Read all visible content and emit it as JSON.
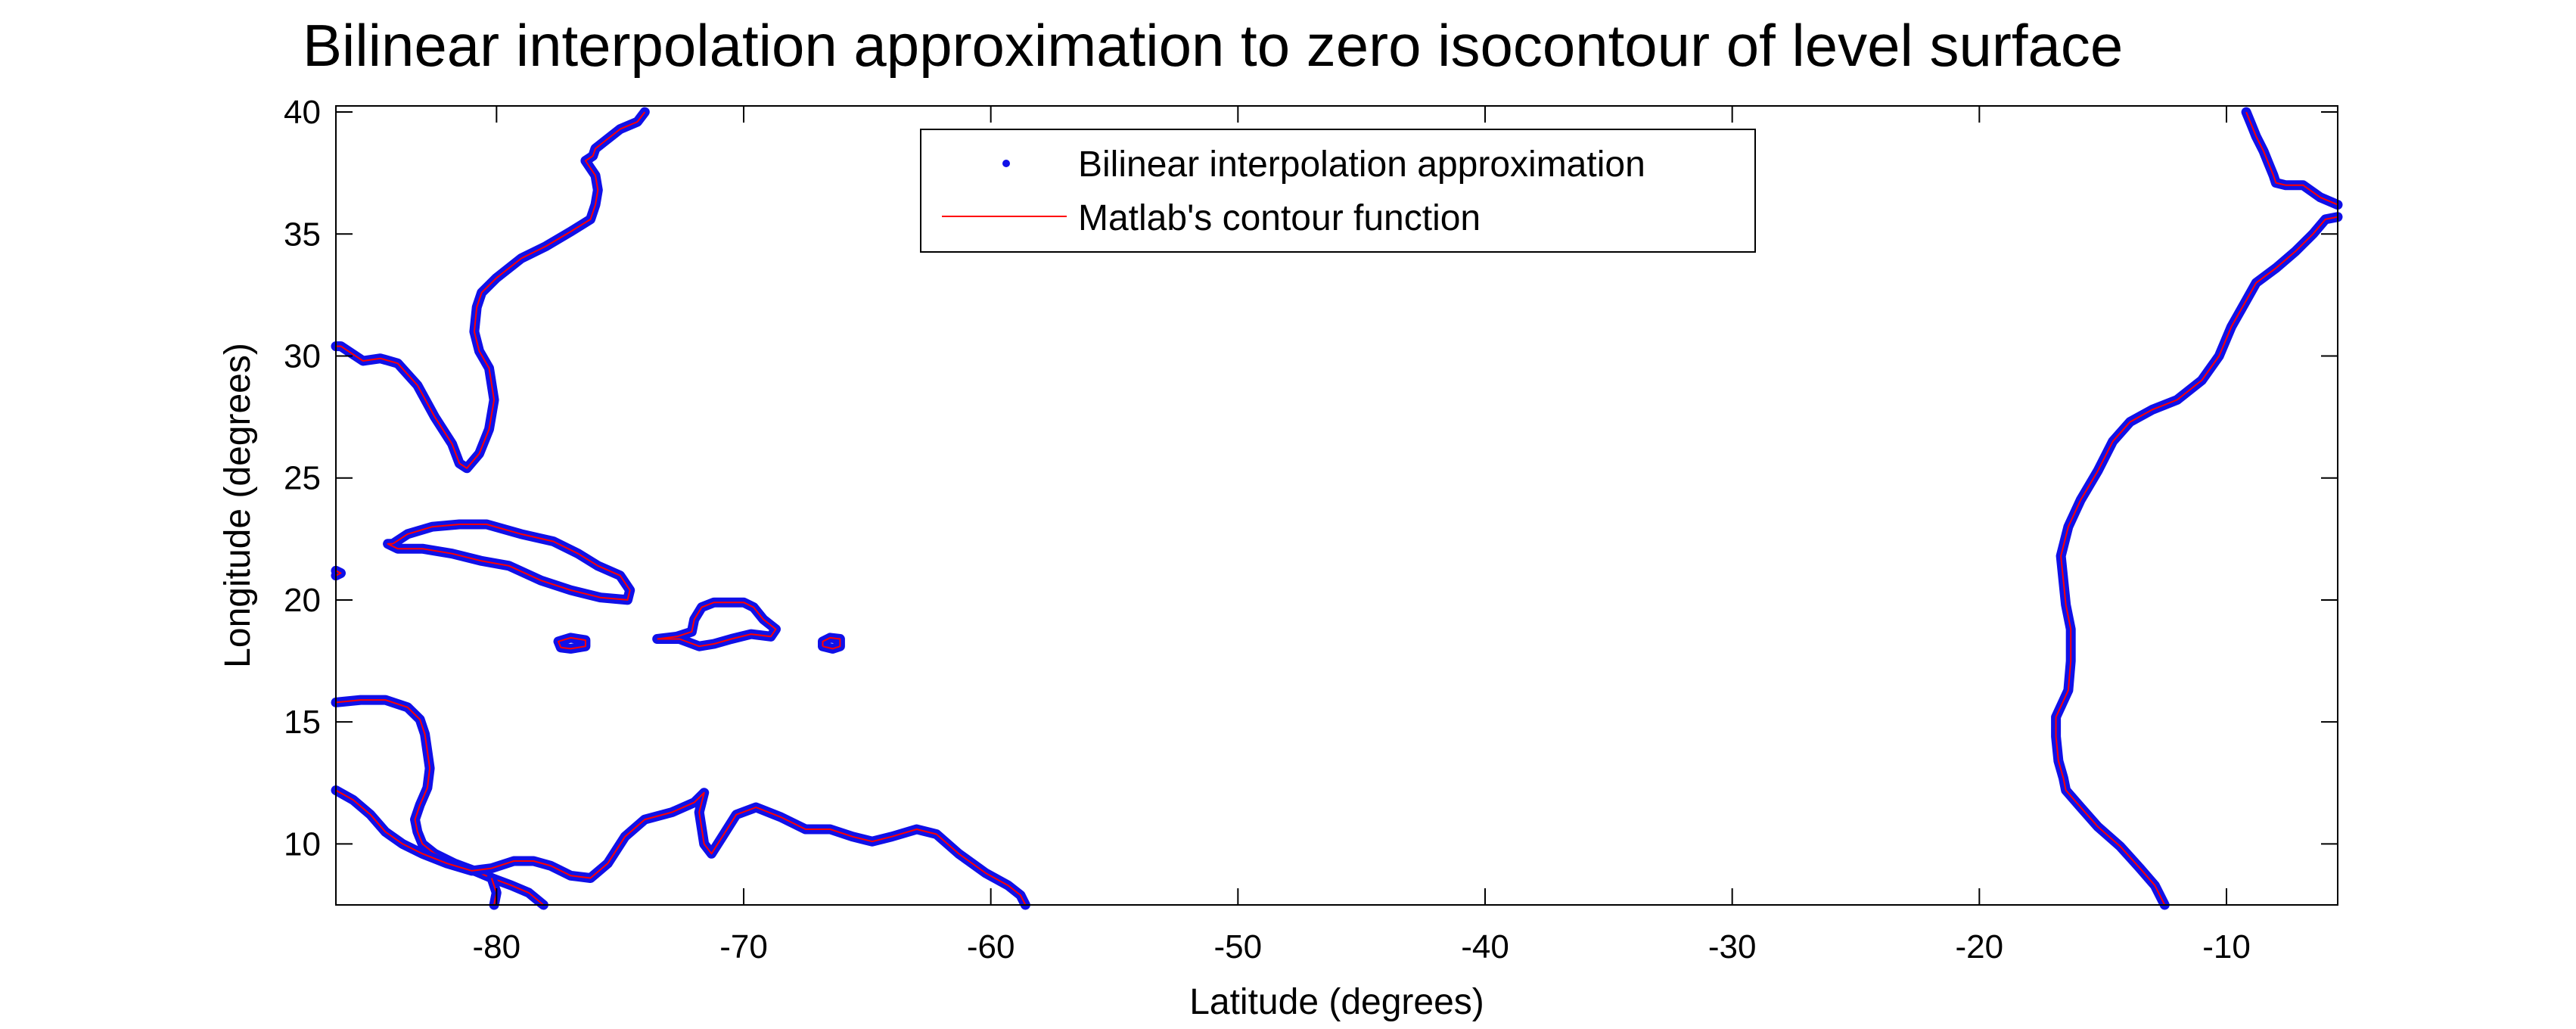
{
  "chart_data": {
    "type": "line",
    "title": "Bilinear interpolation approximation to zero isocontour of level surface",
    "xlabel": "Latitude (degrees)",
    "ylabel": "Longitude (degrees)",
    "xlim": [
      -86.5,
      -5.5
    ],
    "ylim": [
      7.5,
      40.25
    ],
    "xticks": [
      -80,
      -70,
      -60,
      -50,
      -40,
      -30,
      -20,
      -10
    ],
    "xtick_labels": [
      "-80",
      "-70",
      "-60",
      "-50",
      "-40",
      "-30",
      "-20",
      "-10"
    ],
    "yticks": [
      10,
      15,
      20,
      25,
      30,
      35,
      40
    ],
    "ytick_labels": [
      "10",
      "15",
      "20",
      "25",
      "30",
      "35",
      "40"
    ],
    "grid": false,
    "legend_position": "top-center",
    "colors": {
      "approx": "#1010e8",
      "contour": "#ff0000"
    },
    "series": [
      {
        "name": "Bilinear interpolation approximation",
        "style": "dots",
        "color": "#1010e8"
      },
      {
        "name": "Matlab's contour function",
        "style": "line",
        "color": "#ff0000"
      }
    ],
    "contours": [
      {
        "label": "us-east-coast",
        "x": [
          -74.0,
          -74.3,
          -75.0,
          -75.5,
          -76.0,
          -76.1,
          -76.4,
          -76.0,
          -75.9,
          -76.0,
          -76.2,
          -77.0,
          -78.0,
          -79.0,
          -80.0,
          -80.6,
          -80.8,
          -80.9,
          -80.7,
          -80.3,
          -80.1,
          -80.3,
          -80.7,
          -81.2,
          -81.5,
          -81.8,
          -82.5,
          -83.2,
          -84.0,
          -84.7,
          -85.4,
          -86.3,
          -86.5
        ],
        "y": [
          40.0,
          39.6,
          39.3,
          38.9,
          38.5,
          38.2,
          38.0,
          37.4,
          36.8,
          36.2,
          35.6,
          35.1,
          34.5,
          34.0,
          33.2,
          32.6,
          32.0,
          31.0,
          30.2,
          29.5,
          28.2,
          27.0,
          26.0,
          25.4,
          25.6,
          26.4,
          27.5,
          28.8,
          29.7,
          29.9,
          29.8,
          30.4,
          30.4
        ]
      },
      {
        "label": "cuba",
        "x": [
          -84.2,
          -83.6,
          -82.6,
          -81.5,
          -80.4,
          -79.0,
          -77.7,
          -76.7,
          -75.9,
          -75.0,
          -74.6,
          -74.7,
          -75.8,
          -77.0,
          -78.2,
          -79.5,
          -80.6,
          -81.8,
          -83.0,
          -84.0,
          -84.4,
          -84.2
        ],
        "y": [
          22.3,
          22.7,
          23.0,
          23.1,
          23.1,
          22.7,
          22.4,
          21.9,
          21.4,
          21.0,
          20.4,
          20.0,
          20.1,
          20.4,
          20.8,
          21.4,
          21.6,
          21.9,
          22.1,
          22.1,
          22.3,
          22.3
        ]
      },
      {
        "label": "hispaniola",
        "x": [
          -73.5,
          -72.7,
          -72.1,
          -72.0,
          -71.7,
          -71.2,
          -70.0,
          -69.6,
          -69.2,
          -68.7,
          -68.9,
          -69.7,
          -70.5,
          -71.2,
          -71.8,
          -72.6,
          -73.5
        ],
        "y": [
          18.4,
          18.5,
          18.7,
          19.2,
          19.7,
          19.9,
          19.9,
          19.7,
          19.2,
          18.8,
          18.5,
          18.6,
          18.4,
          18.2,
          18.1,
          18.4,
          18.4
        ]
      },
      {
        "label": "jamaica",
        "x": [
          -77.4,
          -77.0,
          -76.4,
          -76.4,
          -77.0,
          -77.5,
          -77.4
        ],
        "y": [
          18.05,
          18.0,
          18.1,
          18.35,
          18.45,
          18.3,
          18.05
        ]
      },
      {
        "label": "puerto-rico",
        "x": [
          -66.8,
          -66.4,
          -66.1,
          -66.1,
          -66.5,
          -66.8,
          -66.8
        ],
        "y": [
          18.1,
          18.0,
          18.1,
          18.4,
          18.45,
          18.3,
          18.1
        ]
      },
      {
        "label": "western-edge-point",
        "x": [
          -86.5,
          -86.3,
          -86.5
        ],
        "y": [
          21.0,
          21.1,
          21.2
        ]
      },
      {
        "label": "central-america",
        "x": [
          -86.5,
          -85.5,
          -84.5,
          -83.6,
          -83.1,
          -82.9,
          -82.8,
          -82.7,
          -82.8,
          -83.1,
          -83.3,
          -83.2,
          -83.0,
          -82.5,
          -81.7,
          -80.9,
          -80.2,
          -79.4,
          -78.7,
          -78.1
        ],
        "y": [
          15.8,
          15.9,
          15.9,
          15.6,
          15.1,
          14.5,
          13.8,
          13.1,
          12.3,
          11.6,
          11.0,
          10.5,
          10.0,
          9.6,
          9.2,
          8.9,
          8.6,
          8.3,
          8.0,
          7.5
        ]
      },
      {
        "label": "south-america-north",
        "x": [
          -86.5,
          -85.8,
          -85.1,
          -84.5,
          -83.8,
          -83.0,
          -82.0,
          -81.0,
          -80.2,
          -79.3,
          -78.5,
          -77.8,
          -77.0,
          -76.2,
          -75.5,
          -74.8,
          -74.0,
          -72.9,
          -72.0,
          -71.6,
          -71.8,
          -71.6,
          -71.3,
          -70.8,
          -70.3,
          -69.5,
          -68.5,
          -67.5,
          -66.5,
          -65.6,
          -64.8,
          -64.0,
          -63.0,
          -62.2,
          -61.3,
          -60.2,
          -59.3,
          -58.8,
          -58.6
        ],
        "y": [
          12.2,
          11.8,
          11.2,
          10.5,
          10.0,
          9.6,
          9.2,
          8.9,
          9.0,
          9.3,
          9.3,
          9.1,
          8.7,
          8.6,
          9.2,
          10.3,
          11.0,
          11.3,
          11.7,
          12.1,
          11.3,
          10.0,
          9.6,
          10.4,
          11.2,
          11.5,
          11.1,
          10.6,
          10.6,
          10.3,
          10.1,
          10.3,
          10.6,
          10.4,
          9.6,
          8.8,
          8.3,
          7.9,
          7.5
        ]
      },
      {
        "label": "colombia-inland",
        "x": [
          -80.1,
          -80.0,
          -80.2
        ],
        "y": [
          7.5,
          8.0,
          8.6
        ]
      },
      {
        "label": "europe-africa-coast",
        "x": [
          -9.2,
          -9.0,
          -8.8,
          -8.5,
          -8.3,
          -8.1,
          -8.0,
          -7.6,
          -6.9,
          -6.2,
          -5.5
        ],
        "y": [
          40.0,
          39.5,
          39.0,
          38.4,
          37.9,
          37.4,
          37.1,
          37.0,
          37.0,
          36.5,
          36.2
        ]
      },
      {
        "label": "west-africa-coast",
        "x": [
          -5.5,
          -6.0,
          -6.5,
          -7.2,
          -8.0,
          -8.8,
          -9.3,
          -9.8,
          -10.3,
          -11.0,
          -12.0,
          -13.0,
          -13.9,
          -14.6,
          -15.2,
          -15.9,
          -16.4,
          -16.7,
          -16.6,
          -16.5,
          -16.3,
          -16.3,
          -16.4,
          -16.9,
          -16.9,
          -16.8,
          -16.6,
          -16.5,
          -15.9,
          -15.2,
          -14.3,
          -13.5,
          -12.9,
          -12.5
        ],
        "y": [
          35.7,
          35.6,
          35.0,
          34.3,
          33.6,
          33.0,
          32.1,
          31.2,
          30.0,
          29.0,
          28.2,
          27.8,
          27.3,
          26.5,
          25.3,
          24.1,
          23.0,
          21.8,
          20.8,
          19.8,
          18.8,
          17.5,
          16.3,
          15.2,
          14.4,
          13.4,
          12.7,
          12.2,
          11.5,
          10.7,
          9.9,
          9.0,
          8.3,
          7.5
        ]
      }
    ]
  }
}
